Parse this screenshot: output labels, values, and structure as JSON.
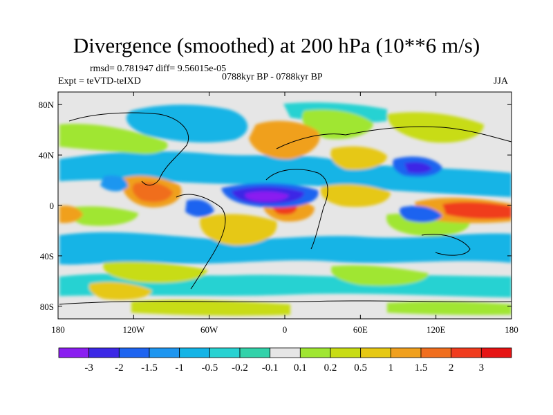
{
  "title": "Divergence (smoothed) at 200 hPa (10**6 m/s)",
  "stats": "rmsd= 0.781947 diff= 9.56015e-05",
  "experiment": "Expt = teVTD-teIXD",
  "period": "0788kyr BP - 0788kyr BP",
  "season": "JJA",
  "map": {
    "lon_range": [
      -180,
      180
    ],
    "lat_range": [
      -90,
      90
    ],
    "lon_ticks": [
      "180",
      "120W",
      "60W",
      "0",
      "60E",
      "120E",
      "180"
    ],
    "lat_ticks": [
      "80N",
      "40N",
      "0",
      "40S",
      "80S"
    ],
    "background_color": "#e6e6e6"
  },
  "colorbar": {
    "labels": [
      "-3",
      "-2",
      "-1.5",
      "-1",
      "-0.5",
      "-0.2",
      "-0.1",
      "0.1",
      "0.2",
      "0.5",
      "1",
      "1.5",
      "2",
      "3"
    ],
    "colors": [
      "#8a1ef0",
      "#3c28e6",
      "#1e64f0",
      "#1e96f0",
      "#14b4e6",
      "#28d2d2",
      "#32d2aa",
      "#e6e6e6",
      "#a0e632",
      "#c8dc14",
      "#e6c814",
      "#f0a01e",
      "#f06e1e",
      "#f03c1e",
      "#e61414"
    ]
  }
}
